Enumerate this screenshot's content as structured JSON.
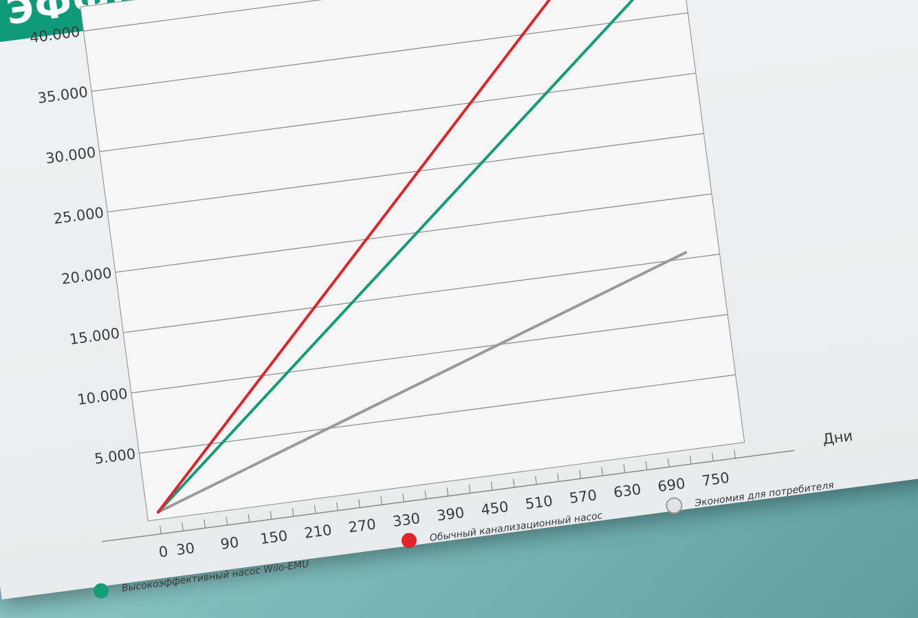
{
  "title": "ЭФФЕКТИВНОСТЬ",
  "chart_data": {
    "type": "line",
    "xlabel": "Дни",
    "ylabel": "",
    "x_ticks": [
      "0",
      "30",
      "90",
      "150",
      "210",
      "270",
      "330",
      "390",
      "450",
      "510",
      "570",
      "630",
      "690",
      "750"
    ],
    "y_ticks": [
      "5.000",
      "10.000",
      "15.000",
      "20.000",
      "25.000",
      "30.000",
      "35.000",
      "40.000"
    ],
    "xlim": [
      0,
      780
    ],
    "ylim": [
      0,
      40000
    ],
    "grid": true,
    "legend_position": "bottom",
    "series": [
      {
        "name": "Высокоэффективный насос Wilo-EMU",
        "color": "#129e75",
        "x": [
          0,
          750
        ],
        "y": [
          0,
          38000
        ]
      },
      {
        "name": "Обычный канализационный насос",
        "color": "#e0242b",
        "x": [
          0,
          750
        ],
        "y": [
          0,
          46000
        ]
      },
      {
        "name": "Экономия для потребителя",
        "color": "#9a9a9a",
        "x": [
          0,
          750
        ],
        "y": [
          0,
          15500
        ]
      }
    ]
  }
}
